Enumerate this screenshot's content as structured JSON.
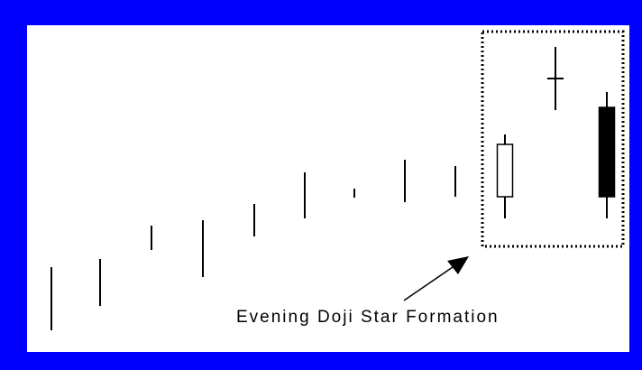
{
  "chart_data": {
    "type": "candlestick",
    "title": "",
    "xlabel": "",
    "ylabel": "",
    "grid": false,
    "legend": "none",
    "candles": [
      {
        "high": 70,
        "low": 0,
        "open": null,
        "close": null
      },
      {
        "high": 79,
        "low": 27,
        "open": null,
        "close": null
      },
      {
        "high": 116,
        "low": 89,
        "open": null,
        "close": null
      },
      {
        "high": 122,
        "low": 59,
        "open": null,
        "close": null
      },
      {
        "high": 140,
        "low": 104,
        "open": null,
        "close": null
      },
      {
        "high": 175,
        "low": 124,
        "open": null,
        "close": null
      },
      {
        "high": 157,
        "low": 147,
        "open": null,
        "close": null
      },
      {
        "high": 189,
        "low": 142,
        "open": null,
        "close": null
      },
      {
        "high": 182,
        "low": 148,
        "open": null,
        "close": null
      },
      {
        "high": 217,
        "low": 124,
        "open": 148,
        "close": 206
      },
      {
        "high": 314,
        "low": 244,
        "open": 279,
        "close": 279
      },
      {
        "high": 264,
        "low": 124,
        "open": 247,
        "close": 148
      }
    ],
    "annotation": {
      "text": "Evening Doji Star Formation",
      "highlighted_candles": [
        9,
        10,
        11
      ]
    },
    "colors": {
      "background_frame": "#0000ff",
      "plot_background": "#ffffff",
      "bullish_body": "#ffffff",
      "bearish_body": "#000000",
      "line": "#000000"
    }
  }
}
